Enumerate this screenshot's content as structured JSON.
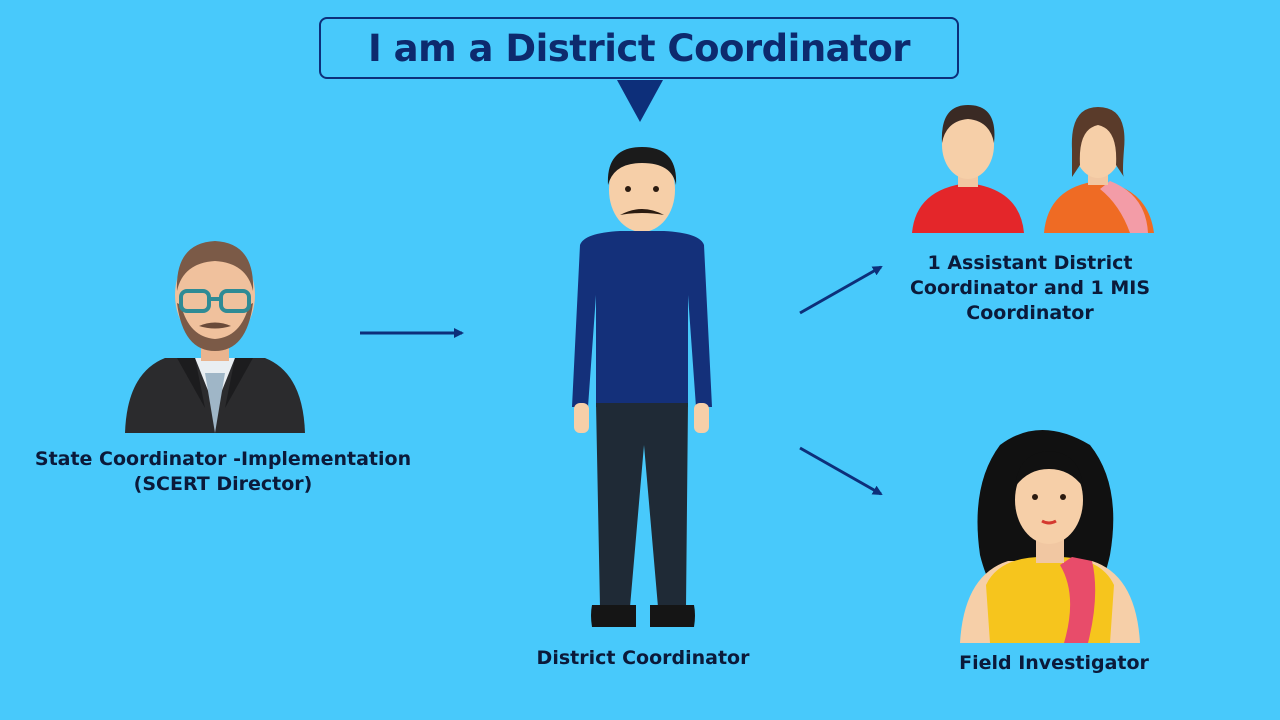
{
  "title": "I am a District Coordinator",
  "nodes": {
    "state_coordinator": {
      "line1": "State Coordinator -Implementation",
      "line2": "(SCERT  Director)"
    },
    "district_coordinator": {
      "label": "District Coordinator"
    },
    "assistants": {
      "line1": "1 Assistant District",
      "line2": "Coordinator and 1 MIS",
      "line3": "Coordinator"
    },
    "field_investigator": {
      "label": "Field Investigator"
    }
  },
  "colors": {
    "background": "#48c9fb",
    "accent": "#0d2f7a",
    "text": "#0b1a3a"
  }
}
